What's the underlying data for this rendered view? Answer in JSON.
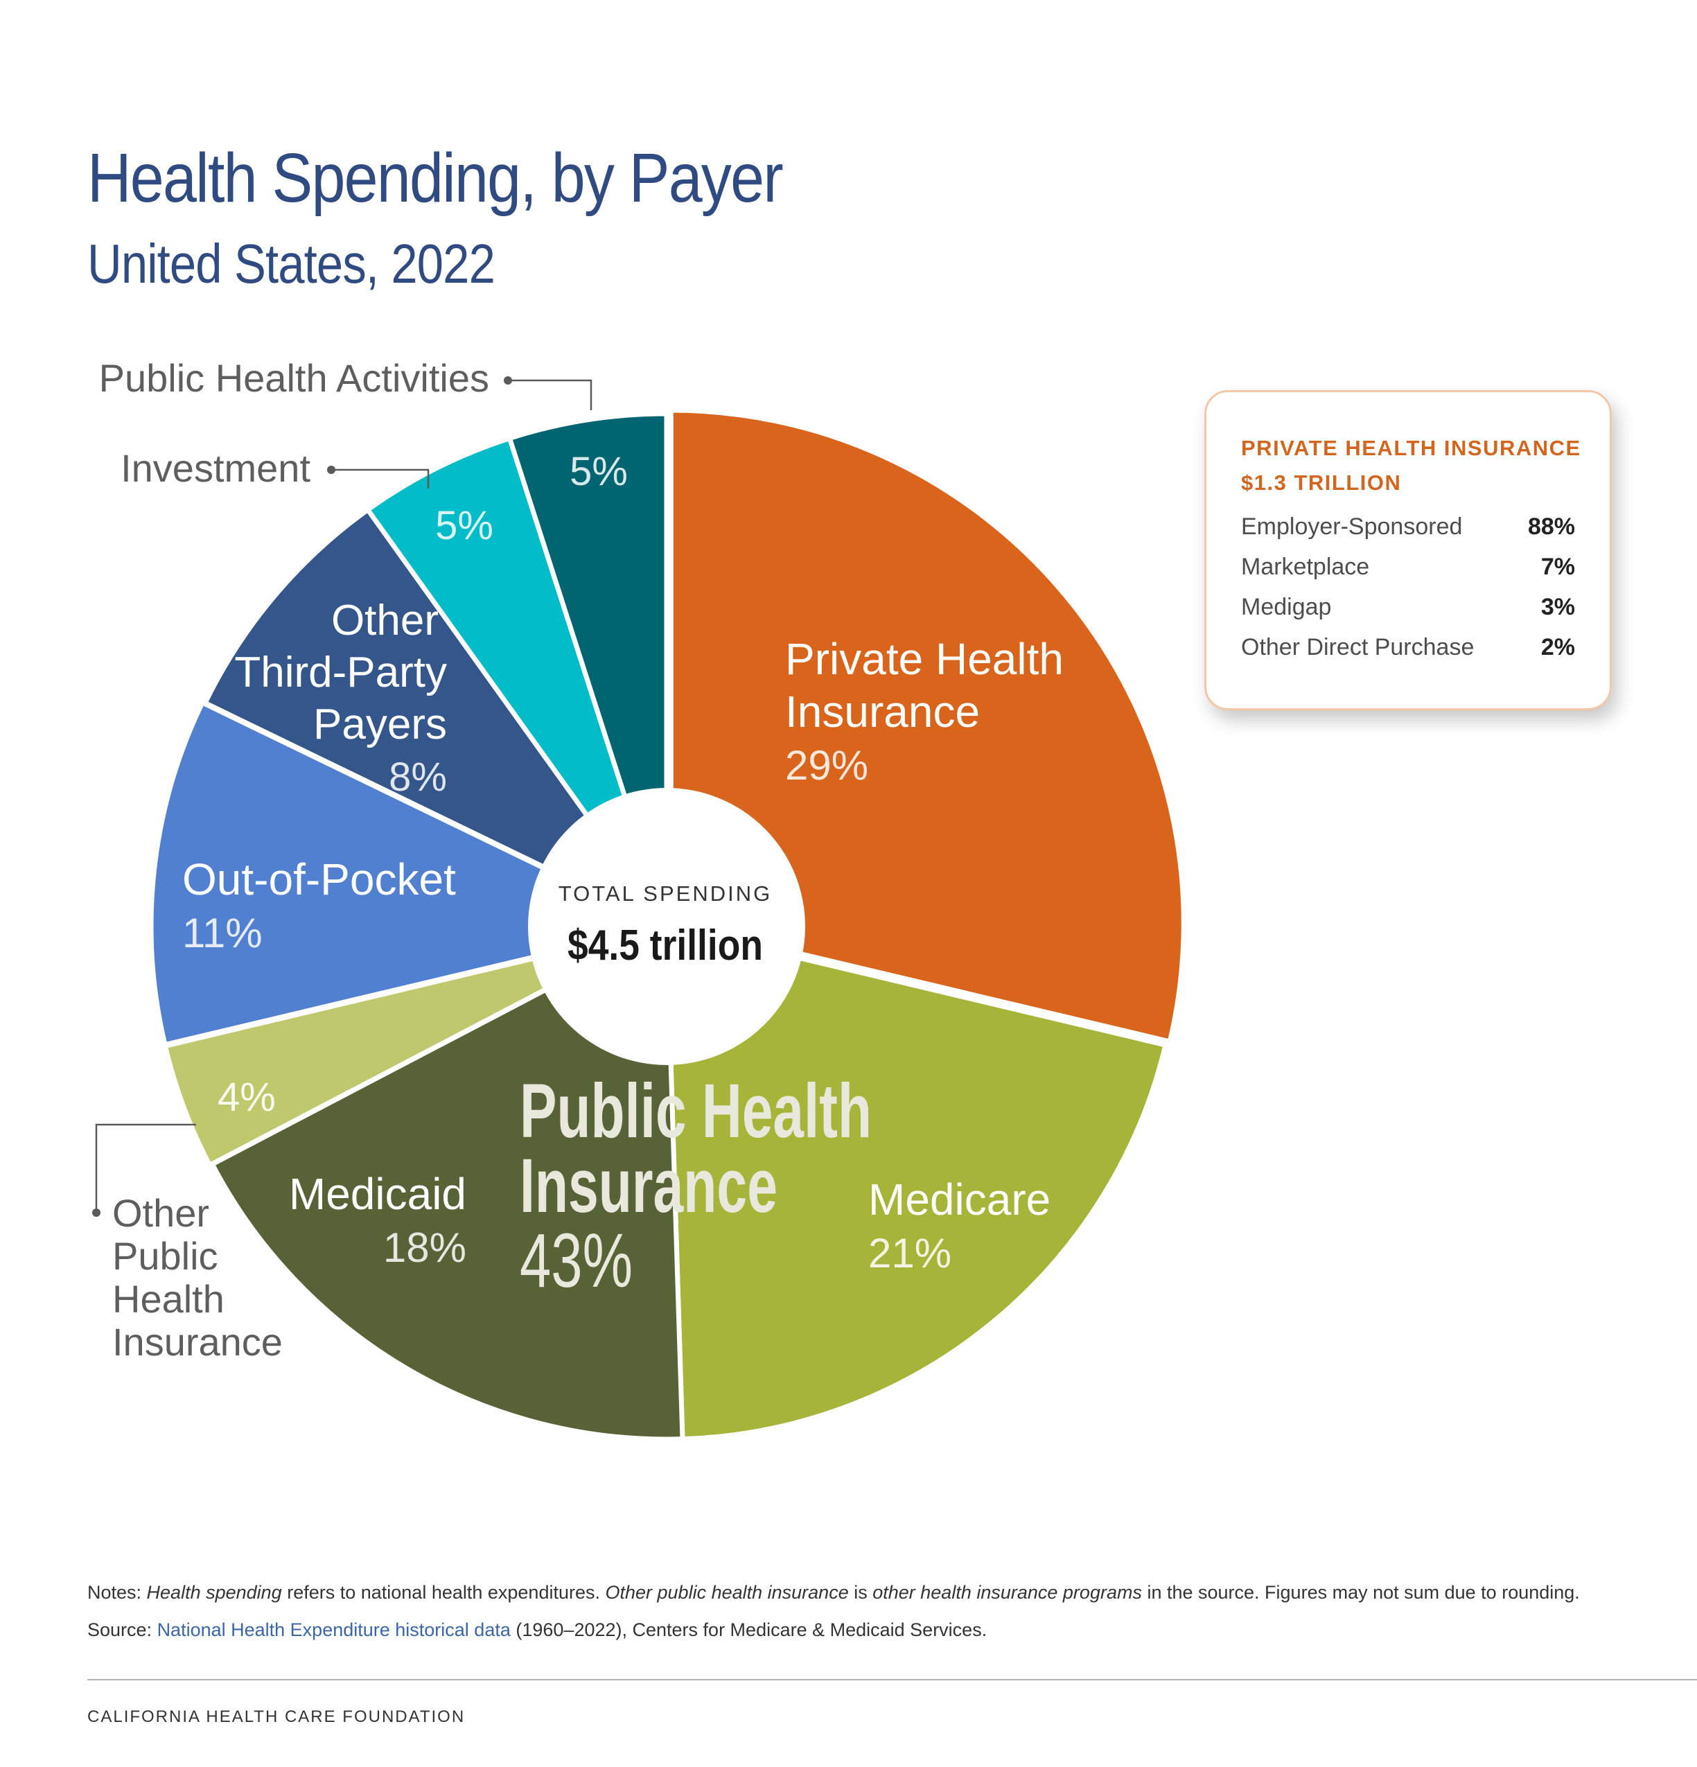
{
  "header": {
    "title": "Health Spending, by Payer",
    "subtitle": "United States, 2022"
  },
  "chart_data": {
    "type": "pie",
    "title": "Health Spending, by Payer",
    "subtitle": "United States, 2022",
    "center_label": "TOTAL SPENDING",
    "center_value": "$4.5 trillion",
    "group_label": [
      "Public Health",
      "Insurance",
      "43%"
    ],
    "slices": [
      {
        "name": "Private Health Insurance",
        "value": 29,
        "label": "29%",
        "color": "#d9641c"
      },
      {
        "name": "Medicare",
        "value": 21,
        "label": "21%",
        "color": "#a6b53a"
      },
      {
        "name": "Medicaid",
        "value": 18,
        "label": "18%",
        "color": "#586237"
      },
      {
        "name": "Other Public Health Insurance",
        "value": 4,
        "label": "4%",
        "color": "#bfc86c"
      },
      {
        "name": "Out-of-Pocket",
        "value": 11,
        "label": "11%",
        "color": "#5180d1"
      },
      {
        "name": "Other Third-Party Payers",
        "value": 8,
        "label": "8%",
        "color": "#34568b"
      },
      {
        "name": "Investment",
        "value": 5,
        "label": "5%",
        "color": "#00bcc8"
      },
      {
        "name": "Public Health Activities",
        "value": 5,
        "label": "5%",
        "color": "#006570"
      }
    ]
  },
  "slice_labels": {
    "private_line1": "Private Health",
    "private_line2": "Insurance",
    "private_pct": "29%",
    "medicare": "Medicare",
    "medicare_pct": "21%",
    "medicaid": "Medicaid",
    "medicaid_pct": "18%",
    "other_public_pct": "4%",
    "other_public_line1": "Other",
    "other_public_line2": "Public",
    "other_public_line3": "Health",
    "other_public_line4": "Insurance",
    "oop": "Out-of-Pocket",
    "oop_pct": "11%",
    "third_line1": "Other",
    "third_line2": "Third-Party",
    "third_line3": "Payers",
    "third_pct": "8%",
    "investment": "Investment",
    "investment_pct": "5%",
    "pha": "Public Health Activities",
    "pha_pct": "5%"
  },
  "callout": {
    "title": "PRIVATE HEALTH INSURANCE",
    "total": "$1.3 TRILLION",
    "rows": [
      {
        "name": "Employer-Sponsored",
        "value": "88%"
      },
      {
        "name": "Marketplace",
        "value": "7%"
      },
      {
        "name": "Medigap",
        "value": "3%"
      },
      {
        "name": "Other Direct Purchase",
        "value": "2%"
      }
    ]
  },
  "notes": {
    "label": "Notes: ",
    "term1": "Health spending",
    "text1": " refers to national health expenditures. ",
    "term2": "Other public health insurance",
    "text2": " is ",
    "term3": "other health insurance programs",
    "text3": " in the source. Figures may not sum due to rounding."
  },
  "source": {
    "label": "Source: ",
    "link": "National Health Expenditure historical data",
    "text": " (1960–2022), Centers for Medicare & Medicaid Services."
  },
  "footer": "CALIFORNIA HEALTH CARE FOUNDATION"
}
